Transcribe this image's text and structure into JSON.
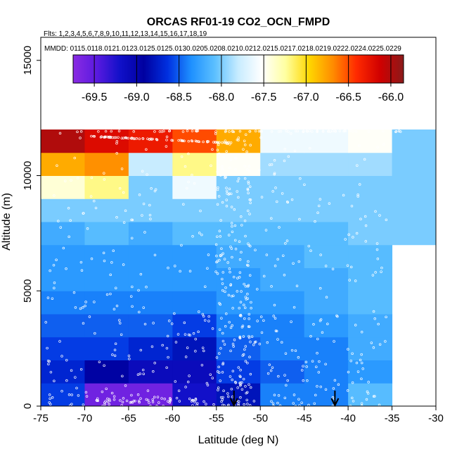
{
  "chart_data": {
    "type": "heatmap",
    "title": "ORCAS RF01-19 CO2_OCN_FMPD",
    "flights_label": "Flts: 1,2,3,4,5,6,7,8,9,10,11,12,13,14,15,16,17,18,19",
    "mmdd_label": "MMDD: 0115,0118,0121,0123,0125,0125,0130,0205,0208,0210,0212,0215,0217,0218,0219,0222,0224,0225,0229",
    "xlabel": "Latitude (deg N)",
    "ylabel": "Altitude (m)",
    "xlim": [
      -75,
      -30
    ],
    "ylim": [
      0,
      16000
    ],
    "x_ticks": [
      -75,
      -70,
      -65,
      -60,
      -55,
      -50,
      -45,
      -40,
      -35,
      -30
    ],
    "y_ticks": [
      0,
      5000,
      10000,
      15000
    ],
    "colorbar": {
      "range": [
        -69.75,
        -65.85
      ],
      "ticks": [
        -69.5,
        -69.0,
        -68.5,
        -68.0,
        -67.5,
        -67.0,
        -66.5,
        -66.0
      ],
      "tick_labels": [
        "-69.5",
        "-69.0",
        "-68.5",
        "-68.0",
        "-67.5",
        "-67.0",
        "-66.5",
        "-66.0"
      ],
      "colors": [
        "#8a2be2",
        "#5a1ae0",
        "#1010c8",
        "#0000a0",
        "#0030e0",
        "#1e90ff",
        "#5cc0ff",
        "#c8ecff",
        "#ffffff",
        "#ffffa0",
        "#ffd700",
        "#ff8c00",
        "#ff2a00",
        "#d00000",
        "#8b1a1a"
      ]
    },
    "x_bins": [
      -75,
      -70,
      -65,
      -60,
      -55,
      -50,
      -45,
      -40,
      -35,
      -30
    ],
    "alt_bins": [
      0,
      1000,
      2000,
      3000,
      4000,
      5000,
      6000,
      7000,
      8000,
      9000,
      10000,
      11000,
      12000
    ],
    "cells": [
      [
        -68.6,
        -69.6,
        -69.6,
        -69.2,
        -68.8,
        -68.4,
        -68.4,
        -68.1,
        null
      ],
      [
        -68.7,
        -68.9,
        -69.1,
        -69.1,
        -68.6,
        -68.5,
        -68.4,
        -68.3,
        null
      ],
      [
        -68.6,
        -68.6,
        -68.7,
        -68.8,
        -68.5,
        -68.4,
        -68.4,
        -68.2,
        null
      ],
      [
        -68.5,
        -68.5,
        -68.5,
        -68.6,
        -68.4,
        -68.4,
        -68.3,
        -68.2,
        null
      ],
      [
        -68.4,
        -68.4,
        -68.4,
        -68.4,
        -68.3,
        -68.3,
        -68.2,
        -68.1,
        null
      ],
      [
        -68.3,
        -68.3,
        -68.3,
        -68.3,
        -68.3,
        -68.2,
        -68.2,
        -68.1,
        null
      ],
      [
        -68.3,
        -68.3,
        -68.3,
        -68.3,
        -68.2,
        -68.2,
        -68.1,
        -68.1,
        null
      ],
      [
        -68.2,
        -68.1,
        -68.2,
        -68.1,
        -68.1,
        -68.1,
        -68.1,
        -68.0,
        -68.0
      ],
      [
        -68.0,
        -68.0,
        -68.0,
        -68.0,
        -68.0,
        -68.0,
        -68.0,
        -68.0,
        -68.0
      ],
      [
        -67.4,
        -67.2,
        -68.0,
        -67.6,
        -68.0,
        -68.0,
        -68.0,
        -68.0,
        -68.0
      ],
      [
        -66.8,
        -66.7,
        -67.8,
        -67.2,
        -67.5,
        -67.9,
        -67.9,
        -67.9,
        -68.0
      ],
      [
        -66.0,
        -66.2,
        -66.3,
        -66.5,
        -66.8,
        -67.6,
        -67.6,
        -67.5,
        -68.0
      ]
    ],
    "arrows_lat": [
      -53,
      -41.5
    ]
  }
}
